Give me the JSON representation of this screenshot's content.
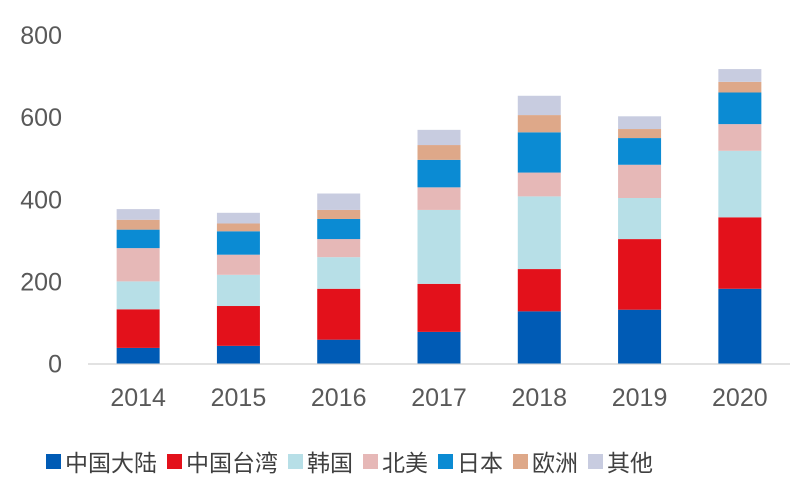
{
  "chart_data": {
    "type": "bar",
    "stacked": true,
    "categories": [
      "2014",
      "2015",
      "2016",
      "2017",
      "2018",
      "2019",
      "2020"
    ],
    "ylim": [
      0,
      800
    ],
    "yticks": [
      0,
      200,
      400,
      600,
      800
    ],
    "grid": false,
    "legend_position": "bottom",
    "series": [
      {
        "name": "中国大陆",
        "color": "#005bb5",
        "values": [
          38,
          43,
          58,
          77,
          127,
          131,
          182
        ]
      },
      {
        "name": "中国台湾",
        "color": "#e3111b",
        "values": [
          94,
          97,
          124,
          117,
          103,
          172,
          174
        ]
      },
      {
        "name": "韩国",
        "color": "#b7dfe7",
        "values": [
          68,
          76,
          77,
          180,
          177,
          100,
          162
        ]
      },
      {
        "name": "北美",
        "color": "#e6b8b7",
        "values": [
          81,
          49,
          44,
          55,
          58,
          81,
          65
        ]
      },
      {
        "name": "日本",
        "color": "#0b8bd3",
        "values": [
          45,
          57,
          49,
          67,
          98,
          65,
          77
        ]
      },
      {
        "name": "欧洲",
        "color": "#dea889",
        "values": [
          24,
          19,
          22,
          36,
          42,
          22,
          26
        ]
      },
      {
        "name": "其他",
        "color": "#c8cce0",
        "values": [
          26,
          26,
          40,
          37,
          47,
          31,
          31
        ]
      }
    ]
  }
}
